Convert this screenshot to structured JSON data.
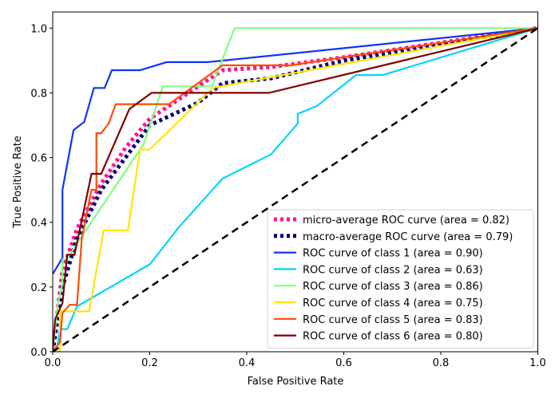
{
  "chart_data": {
    "type": "line",
    "title": "",
    "xlabel": "False Positive Rate",
    "ylabel": "True Positive Rate",
    "xlim": [
      0.0,
      1.0
    ],
    "ylim": [
      0.0,
      1.05
    ],
    "xticks": [
      "0.0",
      "0.2",
      "0.4",
      "0.6",
      "0.8",
      "1.0"
    ],
    "yticks": [
      "0.0",
      "0.2",
      "0.4",
      "0.6",
      "0.8",
      "1.0"
    ],
    "grid": false,
    "legend_position": "bottom-right",
    "series": [
      {
        "name": "micro-average ROC curve (area = 0.82)",
        "color": "#ff1493",
        "style": "dotted",
        "x": [
          0,
          0.02,
          0.05,
          0.1,
          0.15,
          0.2,
          0.25,
          0.3,
          0.35,
          0.45,
          0.6,
          1
        ],
        "y": [
          0,
          0.25,
          0.38,
          0.52,
          0.63,
          0.72,
          0.77,
          0.82,
          0.87,
          0.88,
          0.91,
          1
        ]
      },
      {
        "name": "macro-average ROC curve (area = 0.79)",
        "color": "#000080",
        "style": "dotted",
        "x": [
          0,
          0.02,
          0.05,
          0.1,
          0.15,
          0.2,
          0.3,
          0.35,
          0.45,
          0.6,
          1
        ],
        "y": [
          0,
          0.2,
          0.35,
          0.5,
          0.6,
          0.7,
          0.77,
          0.83,
          0.845,
          0.9,
          1
        ]
      },
      {
        "name": "ROC curve of class 1 (area = 0.90)",
        "color": "#0f33ff",
        "style": "solid",
        "x": [
          0,
          0.02,
          0.02,
          0.043,
          0.065,
          0.085,
          0.107,
          0.122,
          0.18,
          0.235,
          0.32,
          1
        ],
        "y": [
          0.24,
          0.29,
          0.5,
          0.685,
          0.71,
          0.815,
          0.815,
          0.87,
          0.87,
          0.895,
          0.895,
          1
        ]
      },
      {
        "name": "ROC curve of class 2 (area = 0.63)",
        "color": "#00d4ff",
        "style": "solid",
        "x": [
          0,
          0.01,
          0.015,
          0.03,
          0.05,
          0.2,
          0.26,
          0.35,
          0.45,
          0.505,
          0.505,
          0.545,
          0.625,
          0.68,
          1
        ],
        "y": [
          0,
          0.02,
          0.07,
          0.07,
          0.14,
          0.27,
          0.385,
          0.535,
          0.61,
          0.705,
          0.735,
          0.76,
          0.855,
          0.855,
          1
        ]
      },
      {
        "name": "ROC curve of class 3 (area = 0.86)",
        "color": "#7dff7a",
        "style": "solid",
        "x": [
          0,
          0.01,
          0.02,
          0.02,
          0.03,
          0.035,
          0.188,
          0.227,
          0.328,
          0.375,
          1
        ],
        "y": [
          0,
          0.14,
          0.21,
          0.285,
          0.285,
          0.3,
          0.643,
          0.82,
          0.82,
          1,
          1
        ]
      },
      {
        "name": "ROC curve of class 4 (area = 0.75)",
        "color": "#ffe600",
        "style": "solid",
        "x": [
          0,
          0.015,
          0.015,
          0.075,
          0.105,
          0.155,
          0.18,
          0.2,
          0.33,
          1
        ],
        "y": [
          0,
          0,
          0.125,
          0.125,
          0.375,
          0.375,
          0.625,
          0.625,
          0.815,
          1
        ]
      },
      {
        "name": "ROC curve of class 5 (area = 0.83)",
        "color": "#ff4a00",
        "style": "solid",
        "x": [
          0,
          0.01,
          0.015,
          0.02,
          0.035,
          0.05,
          0.06,
          0.08,
          0.09,
          0.09,
          0.1,
          0.115,
          0.13,
          0.24,
          0.35,
          0.49,
          1
        ],
        "y": [
          0,
          0.02,
          0.03,
          0.12,
          0.145,
          0.145,
          0.35,
          0.5,
          0.5,
          0.675,
          0.675,
          0.705,
          0.765,
          0.765,
          0.885,
          0.885,
          1
        ]
      },
      {
        "name": "ROC curve of class 6 (area = 0.80)",
        "color": "#800000",
        "style": "solid",
        "x": [
          0,
          0.005,
          0.02,
          0.03,
          0.045,
          0.08,
          0.1,
          0.158,
          0.204,
          0.446,
          1
        ],
        "y": [
          0,
          0.1,
          0.15,
          0.3,
          0.3,
          0.55,
          0.55,
          0.75,
          0.8,
          0.8,
          1
        ]
      }
    ],
    "reference_line": {
      "x": [
        0,
        1
      ],
      "y": [
        0,
        1
      ],
      "color": "#000000",
      "style": "dashed"
    }
  }
}
